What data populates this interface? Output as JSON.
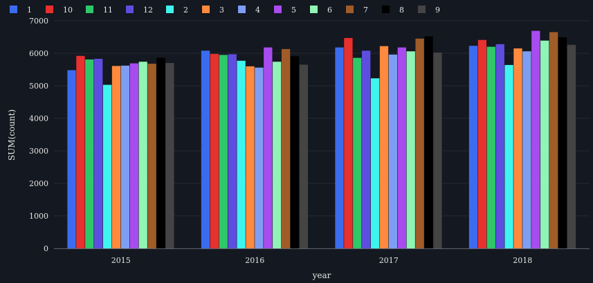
{
  "chart_data": {
    "type": "bar",
    "xlabel": "year",
    "ylabel": "SUM(count)",
    "ylim": [
      0,
      7000
    ],
    "yticks": [
      0,
      1000,
      2000,
      3000,
      4000,
      5000,
      6000,
      7000
    ],
    "grid": true,
    "legend_position": "top-left",
    "categories": [
      "2015",
      "2016",
      "2017",
      "2018"
    ],
    "series": [
      {
        "name": "1",
        "color": "#3b6cf0",
        "values": [
          5480,
          6080,
          6180,
          6230
        ]
      },
      {
        "name": "10",
        "color": "#e8302e",
        "values": [
          5920,
          5980,
          6470,
          6410
        ]
      },
      {
        "name": "11",
        "color": "#2ec868",
        "values": [
          5810,
          5950,
          5860,
          6200
        ]
      },
      {
        "name": "12",
        "color": "#5e4ee0",
        "values": [
          5830,
          5970,
          6080,
          6280
        ]
      },
      {
        "name": "2",
        "color": "#40f4ee",
        "values": [
          5030,
          5770,
          5230,
          5640
        ]
      },
      {
        "name": "3",
        "color": "#ff8a3d",
        "values": [
          5610,
          5600,
          6220,
          6150
        ]
      },
      {
        "name": "4",
        "color": "#7e9ef4",
        "values": [
          5620,
          5560,
          5960,
          6060
        ]
      },
      {
        "name": "5",
        "color": "#a84cf0",
        "values": [
          5690,
          6180,
          6180,
          6690
        ]
      },
      {
        "name": "6",
        "color": "#90f4b4",
        "values": [
          5740,
          5740,
          6060,
          6390
        ]
      },
      {
        "name": "7",
        "color": "#a05c28",
        "values": [
          5680,
          6130,
          6450,
          6650
        ]
      },
      {
        "name": "8",
        "color": "#000000",
        "values": [
          5860,
          5910,
          6520,
          6490
        ]
      },
      {
        "name": "9",
        "color": "#444444",
        "values": [
          5700,
          5650,
          6020,
          6260
        ]
      }
    ]
  }
}
